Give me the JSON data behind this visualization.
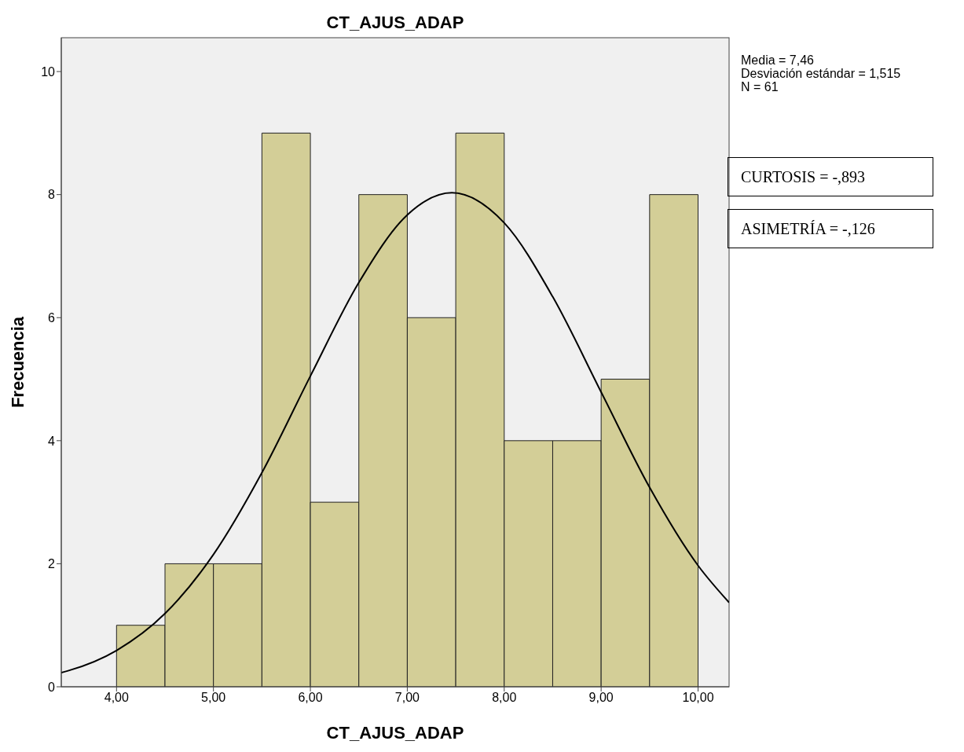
{
  "chart_data": {
    "type": "histogram",
    "title": "CT_AJUS_ADAP",
    "xlabel": "CT_AJUS_ADAP",
    "ylabel": "Frecuencia",
    "bins": [
      4.0,
      4.5,
      5.0,
      5.5,
      6.0,
      6.5,
      7.0,
      7.5,
      8.0,
      8.5,
      9.0,
      9.5,
      10.0
    ],
    "values": [
      1,
      2,
      2,
      9,
      3,
      8,
      6,
      9,
      4,
      4,
      5,
      8
    ],
    "color": "#d3ce97",
    "series": [
      {
        "type": "line",
        "color": "#000000",
        "x": [
          3.43,
          3.5,
          4.0,
          4.5,
          5.0,
          5.5,
          6.0,
          6.5,
          7.0,
          7.46,
          8.0,
          8.5,
          9.0,
          9.5,
          10.0,
          10.32
        ],
        "values": [
          0.23,
          0.26,
          0.59,
          1.19,
          2.15,
          3.48,
          5.05,
          6.57,
          7.67,
          8.03,
          7.54,
          6.34,
          4.79,
          3.24,
          1.97,
          1.37
        ]
      }
    ],
    "xlim": [
      3.43,
      10.32
    ],
    "ylim": [
      0,
      10.55
    ],
    "xticks": [
      {
        "value": 4,
        "label": "4,00"
      },
      {
        "value": 5,
        "label": "5,00"
      },
      {
        "value": 6,
        "label": "6,00"
      },
      {
        "value": 7,
        "label": "7,00"
      },
      {
        "value": 8,
        "label": "8,00"
      },
      {
        "value": 9,
        "label": "9,00"
      },
      {
        "value": 10,
        "label": "10,00"
      }
    ],
    "yticks": [
      0,
      2,
      4,
      6,
      8,
      10
    ],
    "marker": "none",
    "line_style": "solid",
    "annotations": [
      "Media = 7,46",
      "Desviación estándar = 1,515",
      "N = 61",
      "CURTOSIS = -,893",
      "ASIMETRÍA = -,126"
    ]
  }
}
